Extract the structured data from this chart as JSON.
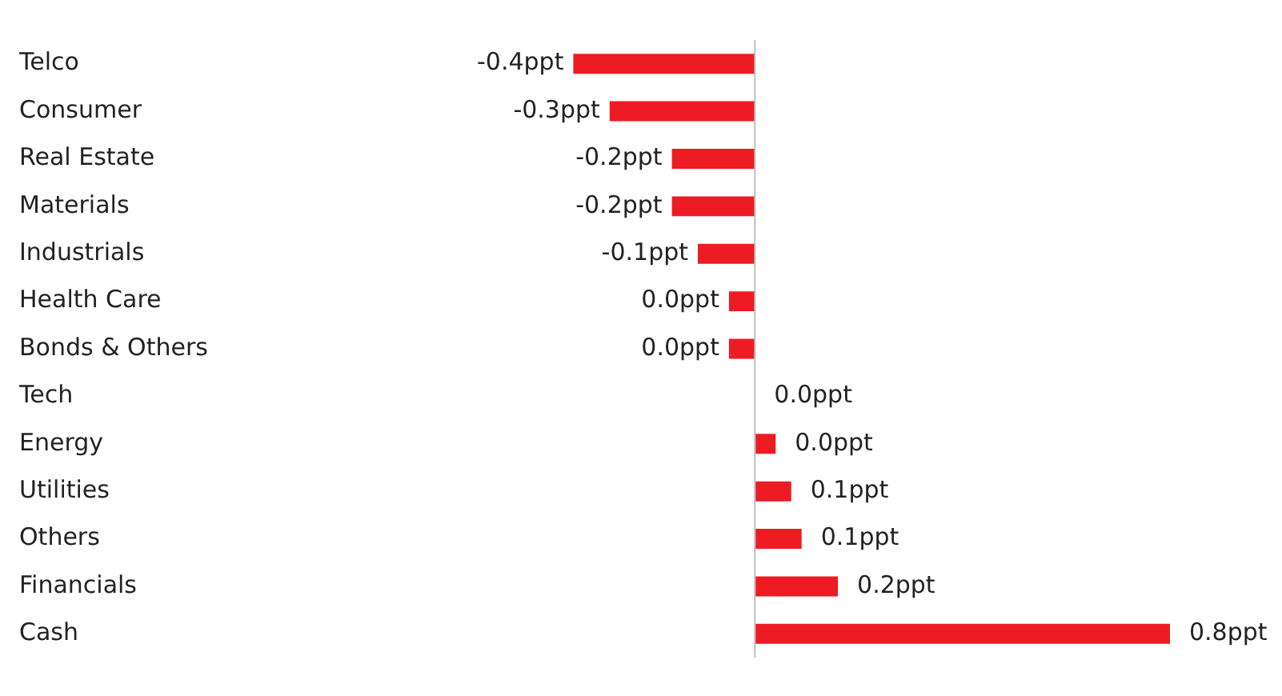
{
  "chart_data": {
    "type": "bar",
    "orientation": "horizontal",
    "categories": [
      "Telco",
      "Consumer",
      "Real Estate",
      "Materials",
      "Industrials",
      "Health Care",
      "Bonds & Others",
      "Tech",
      "Energy",
      "Utilities",
      "Others",
      "Financials",
      "Cash"
    ],
    "values": [
      -0.35,
      -0.28,
      -0.16,
      -0.16,
      -0.11,
      -0.05,
      -0.05,
      0,
      0.04,
      0.07,
      0.09,
      0.16,
      0.8
    ],
    "value_labels": [
      "-0.4ppt",
      "-0.3ppt",
      "-0.2ppt",
      "-0.2ppt",
      "-0.1ppt",
      "0.0ppt",
      "0.0ppt",
      "0.0ppt",
      "0.0ppt",
      "0.1ppt",
      "0.1ppt",
      "0.2ppt",
      "0.8ppt"
    ],
    "color": "#ed1c24",
    "tick_labels": "y",
    "grid": false,
    "legend": false
  }
}
